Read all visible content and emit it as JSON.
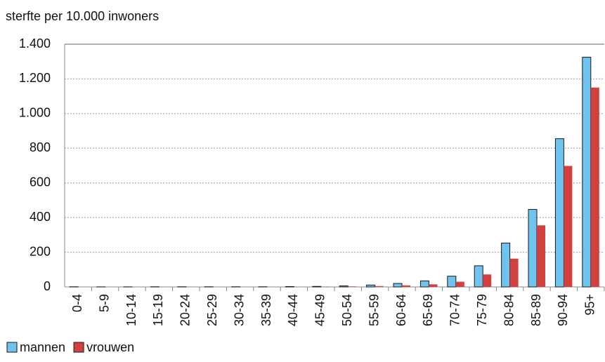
{
  "chart_data": {
    "type": "bar",
    "title": "sterfte per 10.000 inwoners",
    "categories": [
      "0-4",
      "5-9",
      "10-14",
      "15-19",
      "20-24",
      "25-29",
      "30-34",
      "35-39",
      "40-44",
      "45-49",
      "50-54",
      "55-59",
      "60-64",
      "65-69",
      "70-74",
      "75-79",
      "80-84",
      "85-89",
      "90-94",
      "95+"
    ],
    "series": [
      {
        "name": "mannen",
        "color": "#6ec4ee",
        "values": [
          1,
          0.5,
          0.5,
          1,
          1,
          1,
          1,
          1,
          2,
          3,
          6,
          11,
          20,
          35,
          62,
          122,
          253,
          447,
          855,
          1325
        ]
      },
      {
        "name": "vrouwen",
        "color": "#d0413f",
        "values": [
          1,
          0.5,
          0.5,
          0.5,
          0.5,
          0.5,
          1,
          1,
          1,
          2,
          3,
          5,
          9,
          15,
          30,
          72,
          163,
          355,
          698,
          1150
        ]
      }
    ],
    "ylim": [
      0,
      1400
    ],
    "yticks": [
      0,
      200,
      400,
      600,
      800,
      {
        "value": 1000,
        "label": "1.000"
      },
      {
        "value": 1200,
        "label": "1.200"
      },
      {
        "value": 1400,
        "label": "1.400"
      }
    ],
    "grid": true,
    "legend": "bottom-left"
  }
}
